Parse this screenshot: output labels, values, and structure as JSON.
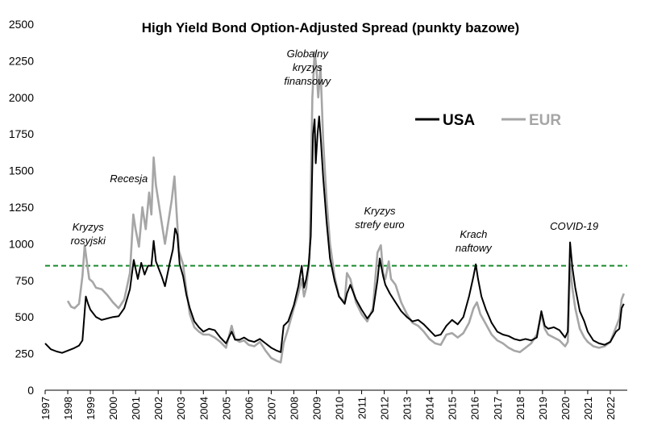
{
  "chart_data": {
    "type": "line",
    "title": "High Yield Bond Option-Adjusted Spread (punkty bazowe)",
    "xlabel": "",
    "ylabel": "",
    "xlim": [
      1997.0,
      2022.75
    ],
    "ylim": [
      0,
      2500
    ],
    "yticks": [
      0,
      250,
      500,
      750,
      1000,
      1250,
      1500,
      1750,
      2000,
      2250,
      2500
    ],
    "xticks": [
      "1997",
      "1998",
      "1999",
      "2000",
      "2001",
      "2002",
      "2003",
      "2004",
      "2005",
      "2006",
      "2007",
      "2008",
      "2009",
      "2010",
      "2011",
      "2012",
      "2013",
      "2014",
      "2015",
      "2016",
      "2017",
      "2018",
      "2019",
      "2020",
      "2021",
      "2022"
    ],
    "threshold": {
      "value": 850,
      "color": "#1a8a2e",
      "style": "dashed"
    },
    "annotations": [
      {
        "text": [
          "Kryzys",
          "rosyjski"
        ],
        "x": 1998.9,
        "y": 1090
      },
      {
        "text": [
          "Recesja"
        ],
        "x": 2000.7,
        "y": 1420
      },
      {
        "text": [
          "Globalny",
          "kryzys",
          "finansowy"
        ],
        "x": 2008.6,
        "y": 2275
      },
      {
        "text": [
          "Kryzys",
          "strefy euro"
        ],
        "x": 2011.8,
        "y": 1200
      },
      {
        "text": [
          "Krach",
          "naftowy"
        ],
        "x": 2015.95,
        "y": 1040
      },
      {
        "text": [
          "COVID-19"
        ],
        "x": 2020.4,
        "y": 1095
      }
    ],
    "legend": {
      "position": "top-right",
      "entries": [
        "USA",
        "EUR"
      ]
    },
    "series": [
      {
        "name": "USA",
        "color": "#000000",
        "points": [
          [
            1997.0,
            320
          ],
          [
            1997.25,
            280
          ],
          [
            1997.5,
            265
          ],
          [
            1997.75,
            255
          ],
          [
            1998.0,
            270
          ],
          [
            1998.25,
            285
          ],
          [
            1998.5,
            305
          ],
          [
            1998.65,
            340
          ],
          [
            1998.8,
            640
          ],
          [
            1998.9,
            590
          ],
          [
            1999.0,
            550
          ],
          [
            1999.25,
            500
          ],
          [
            1999.5,
            480
          ],
          [
            1999.75,
            490
          ],
          [
            2000.0,
            500
          ],
          [
            2000.25,
            505
          ],
          [
            2000.5,
            560
          ],
          [
            2000.75,
            690
          ],
          [
            2000.92,
            890
          ],
          [
            2001.0,
            830
          ],
          [
            2001.1,
            760
          ],
          [
            2001.25,
            870
          ],
          [
            2001.4,
            790
          ],
          [
            2001.55,
            850
          ],
          [
            2001.7,
            850
          ],
          [
            2001.8,
            1020
          ],
          [
            2001.9,
            880
          ],
          [
            2002.0,
            840
          ],
          [
            2002.15,
            780
          ],
          [
            2002.3,
            710
          ],
          [
            2002.5,
            860
          ],
          [
            2002.65,
            960
          ],
          [
            2002.75,
            1105
          ],
          [
            2002.85,
            1060
          ],
          [
            2002.95,
            860
          ],
          [
            2003.1,
            780
          ],
          [
            2003.25,
            650
          ],
          [
            2003.4,
            560
          ],
          [
            2003.6,
            470
          ],
          [
            2003.8,
            430
          ],
          [
            2004.0,
            400
          ],
          [
            2004.25,
            420
          ],
          [
            2004.5,
            410
          ],
          [
            2004.75,
            360
          ],
          [
            2005.0,
            320
          ],
          [
            2005.25,
            400
          ],
          [
            2005.4,
            345
          ],
          [
            2005.6,
            345
          ],
          [
            2005.8,
            360
          ],
          [
            2006.0,
            340
          ],
          [
            2006.25,
            330
          ],
          [
            2006.5,
            350
          ],
          [
            2006.75,
            320
          ],
          [
            2007.0,
            290
          ],
          [
            2007.25,
            270
          ],
          [
            2007.42,
            260
          ],
          [
            2007.55,
            440
          ],
          [
            2007.75,
            470
          ],
          [
            2008.0,
            580
          ],
          [
            2008.2,
            710
          ],
          [
            2008.35,
            850
          ],
          [
            2008.45,
            700
          ],
          [
            2008.55,
            760
          ],
          [
            2008.65,
            850
          ],
          [
            2008.75,
            1050
          ],
          [
            2008.85,
            1750
          ],
          [
            2008.92,
            1850
          ],
          [
            2008.97,
            1550
          ],
          [
            2009.05,
            1750
          ],
          [
            2009.12,
            1870
          ],
          [
            2009.2,
            1700
          ],
          [
            2009.3,
            1450
          ],
          [
            2009.45,
            1150
          ],
          [
            2009.6,
            900
          ],
          [
            2009.8,
            750
          ],
          [
            2010.0,
            640
          ],
          [
            2010.25,
            590
          ],
          [
            2010.35,
            660
          ],
          [
            2010.5,
            720
          ],
          [
            2010.75,
            620
          ],
          [
            2011.0,
            550
          ],
          [
            2011.25,
            490
          ],
          [
            2011.5,
            540
          ],
          [
            2011.7,
            750
          ],
          [
            2011.8,
            900
          ],
          [
            2011.95,
            780
          ],
          [
            2012.05,
            720
          ],
          [
            2012.25,
            660
          ],
          [
            2012.5,
            600
          ],
          [
            2012.75,
            540
          ],
          [
            2013.0,
            500
          ],
          [
            2013.25,
            470
          ],
          [
            2013.5,
            480
          ],
          [
            2013.75,
            450
          ],
          [
            2014.0,
            410
          ],
          [
            2014.25,
            370
          ],
          [
            2014.5,
            380
          ],
          [
            2014.75,
            440
          ],
          [
            2015.0,
            480
          ],
          [
            2015.25,
            450
          ],
          [
            2015.5,
            500
          ],
          [
            2015.75,
            640
          ],
          [
            2015.95,
            780
          ],
          [
            2016.05,
            860
          ],
          [
            2016.15,
            760
          ],
          [
            2016.3,
            640
          ],
          [
            2016.5,
            550
          ],
          [
            2016.75,
            460
          ],
          [
            2017.0,
            400
          ],
          [
            2017.25,
            380
          ],
          [
            2017.5,
            370
          ],
          [
            2017.75,
            350
          ],
          [
            2018.0,
            340
          ],
          [
            2018.25,
            350
          ],
          [
            2018.5,
            340
          ],
          [
            2018.75,
            360
          ],
          [
            2018.95,
            540
          ],
          [
            2019.1,
            440
          ],
          [
            2019.25,
            420
          ],
          [
            2019.5,
            430
          ],
          [
            2019.75,
            410
          ],
          [
            2020.0,
            360
          ],
          [
            2020.12,
            400
          ],
          [
            2020.22,
            1010
          ],
          [
            2020.32,
            840
          ],
          [
            2020.45,
            700
          ],
          [
            2020.65,
            540
          ],
          [
            2020.85,
            470
          ],
          [
            2021.0,
            400
          ],
          [
            2021.25,
            340
          ],
          [
            2021.5,
            320
          ],
          [
            2021.75,
            310
          ],
          [
            2022.0,
            330
          ],
          [
            2022.25,
            400
          ],
          [
            2022.4,
            420
          ],
          [
            2022.5,
            560
          ],
          [
            2022.6,
            590
          ]
        ]
      },
      {
        "name": "EUR",
        "color": "#a6a6a6",
        "points": [
          [
            1998.0,
            610
          ],
          [
            1998.15,
            570
          ],
          [
            1998.3,
            560
          ],
          [
            1998.5,
            590
          ],
          [
            1998.65,
            780
          ],
          [
            1998.75,
            990
          ],
          [
            1998.85,
            870
          ],
          [
            1998.95,
            760
          ],
          [
            1999.1,
            740
          ],
          [
            1999.25,
            700
          ],
          [
            1999.5,
            690
          ],
          [
            1999.75,
            650
          ],
          [
            2000.0,
            600
          ],
          [
            2000.25,
            560
          ],
          [
            2000.5,
            620
          ],
          [
            2000.75,
            800
          ],
          [
            2000.9,
            1200
          ],
          [
            2001.0,
            1100
          ],
          [
            2001.15,
            980
          ],
          [
            2001.3,
            1250
          ],
          [
            2001.45,
            1100
          ],
          [
            2001.6,
            1350
          ],
          [
            2001.7,
            1200
          ],
          [
            2001.8,
            1590
          ],
          [
            2001.9,
            1400
          ],
          [
            2002.0,
            1300
          ],
          [
            2002.15,
            1150
          ],
          [
            2002.3,
            1000
          ],
          [
            2002.45,
            1150
          ],
          [
            2002.6,
            1300
          ],
          [
            2002.72,
            1460
          ],
          [
            2002.82,
            1200
          ],
          [
            2002.92,
            950
          ],
          [
            2003.1,
            860
          ],
          [
            2003.25,
            680
          ],
          [
            2003.4,
            520
          ],
          [
            2003.6,
            430
          ],
          [
            2003.8,
            400
          ],
          [
            2004.0,
            380
          ],
          [
            2004.25,
            380
          ],
          [
            2004.5,
            360
          ],
          [
            2004.75,
            330
          ],
          [
            2005.0,
            290
          ],
          [
            2005.25,
            440
          ],
          [
            2005.4,
            350
          ],
          [
            2005.6,
            330
          ],
          [
            2005.8,
            340
          ],
          [
            2006.0,
            310
          ],
          [
            2006.25,
            300
          ],
          [
            2006.5,
            330
          ],
          [
            2006.75,
            270
          ],
          [
            2007.0,
            220
          ],
          [
            2007.25,
            200
          ],
          [
            2007.42,
            190
          ],
          [
            2007.55,
            320
          ],
          [
            2007.75,
            420
          ],
          [
            2008.0,
            560
          ],
          [
            2008.2,
            660
          ],
          [
            2008.35,
            760
          ],
          [
            2008.45,
            640
          ],
          [
            2008.55,
            700
          ],
          [
            2008.7,
            900
          ],
          [
            2008.82,
            2000
          ],
          [
            2008.92,
            2310
          ],
          [
            2009.0,
            2200
          ],
          [
            2009.08,
            2000
          ],
          [
            2009.18,
            2210
          ],
          [
            2009.3,
            1700
          ],
          [
            2009.45,
            1300
          ],
          [
            2009.6,
            1000
          ],
          [
            2009.8,
            780
          ],
          [
            2010.0,
            640
          ],
          [
            2010.25,
            600
          ],
          [
            2010.35,
            800
          ],
          [
            2010.5,
            760
          ],
          [
            2010.75,
            600
          ],
          [
            2011.0,
            520
          ],
          [
            2011.25,
            470
          ],
          [
            2011.5,
            560
          ],
          [
            2011.7,
            940
          ],
          [
            2011.85,
            990
          ],
          [
            2011.95,
            800
          ],
          [
            2012.05,
            760
          ],
          [
            2012.2,
            880
          ],
          [
            2012.3,
            760
          ],
          [
            2012.5,
            720
          ],
          [
            2012.75,
            600
          ],
          [
            2013.0,
            520
          ],
          [
            2013.25,
            460
          ],
          [
            2013.5,
            440
          ],
          [
            2013.75,
            400
          ],
          [
            2014.0,
            350
          ],
          [
            2014.25,
            320
          ],
          [
            2014.5,
            310
          ],
          [
            2014.75,
            380
          ],
          [
            2015.0,
            390
          ],
          [
            2015.25,
            360
          ],
          [
            2015.5,
            390
          ],
          [
            2015.75,
            460
          ],
          [
            2015.95,
            560
          ],
          [
            2016.1,
            600
          ],
          [
            2016.25,
            520
          ],
          [
            2016.5,
            450
          ],
          [
            2016.75,
            380
          ],
          [
            2017.0,
            340
          ],
          [
            2017.25,
            320
          ],
          [
            2017.5,
            290
          ],
          [
            2017.75,
            270
          ],
          [
            2018.0,
            260
          ],
          [
            2018.25,
            290
          ],
          [
            2018.5,
            320
          ],
          [
            2018.75,
            380
          ],
          [
            2018.95,
            520
          ],
          [
            2019.1,
            420
          ],
          [
            2019.25,
            380
          ],
          [
            2019.5,
            360
          ],
          [
            2019.75,
            340
          ],
          [
            2020.0,
            300
          ],
          [
            2020.12,
            330
          ],
          [
            2020.22,
            860
          ],
          [
            2020.32,
            700
          ],
          [
            2020.45,
            560
          ],
          [
            2020.65,
            420
          ],
          [
            2020.85,
            360
          ],
          [
            2021.0,
            330
          ],
          [
            2021.25,
            300
          ],
          [
            2021.5,
            290
          ],
          [
            2021.75,
            300
          ],
          [
            2022.0,
            330
          ],
          [
            2022.25,
            430
          ],
          [
            2022.4,
            490
          ],
          [
            2022.5,
            620
          ],
          [
            2022.6,
            660
          ]
        ]
      }
    ]
  }
}
